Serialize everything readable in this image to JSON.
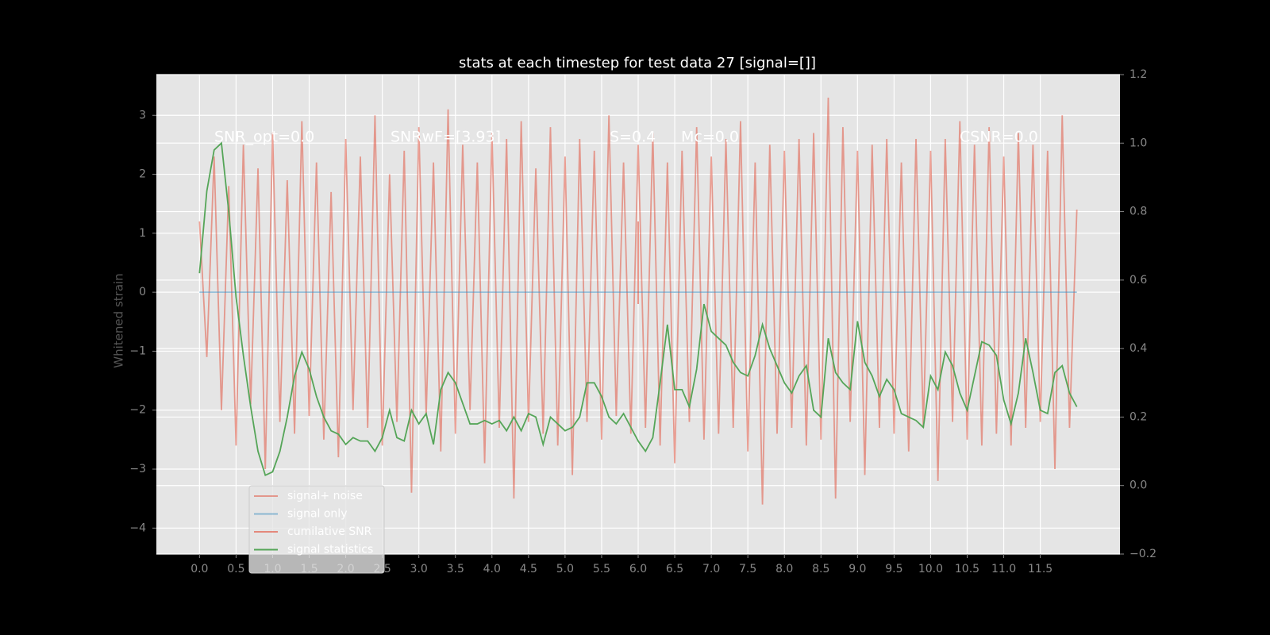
{
  "chart_data": {
    "type": "line",
    "title": "stats at each timestep for test data 27 [signal=[]]",
    "ylabel": "Whitened strain",
    "annotations": [
      "SNR_opt=0.0",
      "SNRwF=[3.93]",
      "S=0.4",
      "Mc=0.0",
      "CSNR=0.0"
    ],
    "x": [
      0,
      0.1,
      0.2,
      0.3,
      0.4,
      0.5,
      0.6,
      0.7,
      0.8,
      0.9,
      1,
      1.1,
      1.2,
      1.3,
      1.4,
      1.5,
      1.6,
      1.7,
      1.8,
      1.9,
      2,
      2.1,
      2.2,
      2.3,
      2.4,
      2.5,
      2.6,
      2.7,
      2.8,
      2.9,
      3,
      3.1,
      3.2,
      3.3,
      3.4,
      3.5,
      3.6,
      3.7,
      3.8,
      3.9,
      4,
      4.1,
      4.2,
      4.3,
      4.4,
      4.5,
      4.6,
      4.7,
      4.8,
      4.9,
      5,
      5.1,
      5.2,
      5.3,
      5.4,
      5.5,
      5.6,
      5.7,
      5.8,
      5.9,
      6,
      6.1,
      6.2,
      6.3,
      6.4,
      6.5,
      6.6,
      6.7,
      6.8,
      6.9,
      7,
      7.1,
      7.2,
      7.3,
      7.4,
      7.5,
      7.6,
      7.7,
      7.8,
      7.9,
      8,
      8.1,
      8.2,
      8.3,
      8.4,
      8.5,
      8.6,
      8.7,
      8.8,
      8.9,
      9,
      9.1,
      9.2,
      9.3,
      9.4,
      9.5,
      9.6,
      9.7,
      9.8,
      9.9,
      10,
      10.1,
      10.2,
      10.3,
      10.4,
      10.5,
      10.6,
      10.7,
      10.8,
      10.9,
      11,
      11.1,
      11.2,
      11.3,
      11.4,
      11.5,
      11.6,
      11.7,
      11.8,
      11.9,
      12
    ],
    "series": [
      {
        "name": "signal+ noise",
        "color": "#e24a33",
        "opacity": 0.5,
        "values": [
          1.2,
          -1.1,
          2.3,
          -2.0,
          1.8,
          -2.6,
          2.5,
          -1.9,
          2.1,
          -3.0,
          2.7,
          -2.2,
          1.9,
          -2.4,
          2.9,
          -2.1,
          2.2,
          -2.5,
          1.7,
          -2.8,
          2.6,
          -2.0,
          2.3,
          -2.3,
          3.0,
          -2.6,
          2.0,
          -2.2,
          2.4,
          -3.4,
          2.8,
          -2.1,
          2.2,
          -2.7,
          3.1,
          -2.4,
          2.5,
          -2.0,
          2.2,
          -2.9,
          2.7,
          -2.3,
          2.6,
          -3.5,
          2.9,
          -2.2,
          2.1,
          -2.4,
          2.8,
          -2.6,
          2.3,
          -3.1,
          2.6,
          -2.2,
          2.4,
          -2.5,
          3.0,
          -2.1,
          2.2,
          -2.4,
          2.5,
          -2.3,
          2.7,
          -2.6,
          2.2,
          -2.9,
          2.4,
          -2.2,
          2.8,
          -2.5,
          2.3,
          -2.4,
          2.6,
          -2.3,
          2.9,
          -2.7,
          2.2,
          -3.6,
          2.5,
          -2.4,
          2.4,
          -2.3,
          2.6,
          -2.6,
          2.7,
          -2.5,
          3.3,
          -3.5,
          2.8,
          -2.2,
          2.4,
          -3.1,
          2.5,
          -2.3,
          2.6,
          -2.4,
          2.2,
          -2.7,
          2.6,
          -2.3,
          2.4,
          -3.2,
          2.6,
          -2.2,
          2.9,
          -2.5,
          2.5,
          -2.6,
          2.8,
          -2.4,
          2.3,
          -2.6,
          2.7,
          -2.3,
          2.5,
          -2.2,
          2.4,
          -3.0,
          3.0,
          -2.3,
          1.4
        ]
      },
      {
        "name": "signal only",
        "color": "#348abd",
        "opacity": 0.5,
        "x": [
          0,
          12
        ],
        "values": [
          0,
          0
        ]
      },
      {
        "name": "cumilative SNR",
        "color": "#e24a33",
        "opacity": 0.6,
        "x": [
          6,
          6
        ],
        "values": [
          -0.2,
          1.2
        ]
      },
      {
        "name": "signal statistics",
        "color": "#55a558",
        "opacity": 1,
        "axis": "y2",
        "values": [
          0.62,
          0.86,
          0.98,
          1.0,
          0.8,
          0.55,
          0.38,
          0.23,
          0.1,
          0.03,
          0.04,
          0.1,
          0.2,
          0.32,
          0.39,
          0.34,
          0.26,
          0.2,
          0.16,
          0.15,
          0.12,
          0.14,
          0.13,
          0.13,
          0.1,
          0.14,
          0.22,
          0.14,
          0.13,
          0.22,
          0.18,
          0.21,
          0.12,
          0.28,
          0.33,
          0.3,
          0.24,
          0.18,
          0.18,
          0.19,
          0.18,
          0.19,
          0.16,
          0.2,
          0.16,
          0.21,
          0.2,
          0.12,
          0.2,
          0.18,
          0.16,
          0.17,
          0.2,
          0.3,
          0.3,
          0.26,
          0.2,
          0.18,
          0.21,
          0.17,
          0.13,
          0.1,
          0.14,
          0.3,
          0.47,
          0.28,
          0.28,
          0.23,
          0.34,
          0.53,
          0.45,
          0.43,
          0.41,
          0.36,
          0.33,
          0.32,
          0.38,
          0.47,
          0.4,
          0.35,
          0.3,
          0.27,
          0.32,
          0.35,
          0.22,
          0.2,
          0.43,
          0.33,
          0.3,
          0.28,
          0.48,
          0.36,
          0.32,
          0.26,
          0.31,
          0.28,
          0.21,
          0.2,
          0.19,
          0.17,
          0.32,
          0.28,
          0.39,
          0.35,
          0.27,
          0.22,
          0.32,
          0.42,
          0.41,
          0.38,
          0.25,
          0.18,
          0.27,
          0.43,
          0.33,
          0.22,
          0.21,
          0.33,
          0.35,
          0.27,
          0.23
        ]
      }
    ],
    "xlim": [
      -0.59,
      12.59
    ],
    "xticks": [
      {
        "value": 0,
        "label": "0.0"
      },
      0.5,
      {
        "value": 1,
        "label": "1.0"
      },
      1.5,
      {
        "value": 2,
        "label": "2.0"
      },
      2.5,
      {
        "value": 3,
        "label": "3.0"
      },
      3.5,
      {
        "value": 4,
        "label": "4.0"
      },
      4.5,
      {
        "value": 5,
        "label": "5.0"
      },
      5.5,
      {
        "value": 6,
        "label": "6.0"
      },
      6.5,
      {
        "value": 7,
        "label": "7.0"
      },
      7.5,
      {
        "value": 8,
        "label": "8.0"
      },
      8.5,
      {
        "value": 9,
        "label": "9.0"
      },
      9.5,
      {
        "value": 10,
        "label": "10.0"
      },
      10.5,
      {
        "value": 11,
        "label": "11.0"
      },
      11.5
    ],
    "ylim": [
      -4.44,
      3.69
    ],
    "yticks": [
      {
        "value": -4,
        "label": "−4"
      },
      {
        "value": -3,
        "label": "−3"
      },
      {
        "value": -2,
        "label": "−2"
      },
      {
        "value": -1,
        "label": "−1"
      },
      0,
      1,
      2,
      3
    ],
    "y2lim": [
      -0.2,
      1.2
    ],
    "y2ticks": [
      {
        "value": -0.2,
        "label": "−0.2"
      },
      {
        "value": 0,
        "label": "0.0"
      },
      0.2,
      0.4,
      0.6,
      0.8,
      {
        "value": 1,
        "label": "1.0"
      },
      1.2
    ],
    "grid": true,
    "legend": "lower left"
  }
}
